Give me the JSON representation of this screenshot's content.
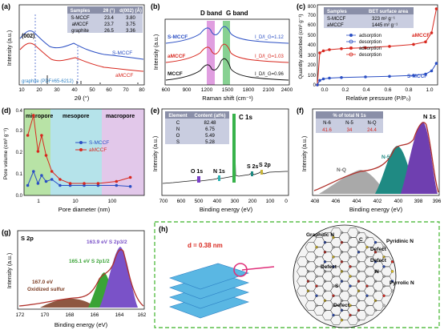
{
  "panel_labels": [
    "(a)",
    "(b)",
    "(c)",
    "(d)",
    "(e)",
    "(f)",
    "(g)",
    "(h)"
  ],
  "colors": {
    "smccf": "#2b4fc4",
    "amccf": "#d8281f",
    "graphite": "#1a1a1a",
    "d_band": "#c64fc7",
    "g_band": "#37b24a",
    "table_header": "#8a8fa8",
    "table_body": "#c9cde0",
    "micropore": "#b8e3a6",
    "mesopore": "#b5e3ea",
    "macropore": "#e2c8ea",
    "n6": "#6f3fb0",
    "n5": "#1f8a83",
    "nq": "#9a9a9a",
    "s2p32": "#7a52c8",
    "s2p12": "#3aa336",
    "oxidized_s": "#7a3a20",
    "envelope": "#b0302a",
    "frame_dash": "#5bbf4a",
    "sheet": "#5ab7e3",
    "magnify_ring": "#e0307a"
  },
  "panel_a": {
    "chart_data": {
      "type": "line",
      "xlabel": "2θ (°)",
      "ylabel": "Intensity (a.u.)",
      "xlim": [
        10,
        80
      ],
      "xticks": [
        "10",
        "20",
        "30",
        "40",
        "50",
        "60",
        "70",
        "80"
      ],
      "series": [
        {
          "name": "S-MCCF",
          "peaks": [
            23.4,
            43.5
          ]
        },
        {
          "name": "aMCCF",
          "peaks": [
            23.7,
            43.5
          ]
        },
        {
          "name": "graphite (PDF#65-6212)",
          "peaks": [
            26.5,
            42.4,
            44.6,
            54.7,
            77.5
          ]
        }
      ],
      "annotation": "(002)",
      "table": {
        "headers": [
          "Samples",
          "2θ (°)",
          "d(002) (Å)"
        ],
        "rows": [
          [
            "S-MCCF",
            "23.4",
            "3.80"
          ],
          [
            "aMCCF",
            "23.7",
            "3.75"
          ],
          [
            "graphite",
            "26.5",
            "3.36"
          ]
        ]
      }
    }
  },
  "panel_b": {
    "chart_data": {
      "type": "line",
      "xlabel": "Raman shift (cm⁻¹)",
      "ylabel": "Intensity (a.u.)",
      "xlim": [
        600,
        2400
      ],
      "xticks": [
        "600",
        "900",
        "1200",
        "1500",
        "1800",
        "2100",
        "2400"
      ],
      "band_labels": [
        "D band",
        "G band"
      ],
      "series": [
        {
          "name": "S-MCCF",
          "ratio": "I_D/I_G=1.12"
        },
        {
          "name": "aMCCF",
          "ratio": "I_D/I_G=1.03"
        },
        {
          "name": "MCCF",
          "ratio": "I_D/I_G=0.96"
        }
      ]
    }
  },
  "panel_c": {
    "chart_data": {
      "type": "line",
      "xlabel": "Relative pressure (P/P₀)",
      "ylabel": "Quantity adsorbed (cm³ g⁻¹)",
      "xlim": [
        0.0,
        1.0
      ],
      "ylim": [
        0,
        800
      ],
      "xticks": [
        "0.0",
        "0.2",
        "0.4",
        "0.6",
        "0.8",
        "1.0"
      ],
      "yticks": [
        "0",
        "100",
        "200",
        "300",
        "400",
        "500",
        "600",
        "700",
        "800"
      ],
      "legend": [
        "adsorption",
        "desorption",
        "adsorption",
        "desorption"
      ],
      "series_labels": [
        "aMCCF",
        "S-MCCF"
      ],
      "series": [
        {
          "name": "aMCCF",
          "x": [
            0.0,
            0.02,
            0.05,
            0.1,
            0.2,
            0.4,
            0.6,
            0.8,
            0.9,
            0.95,
            0.99
          ],
          "y": [
            0,
            320,
            340,
            352,
            362,
            372,
            385,
            405,
            430,
            520,
            760
          ]
        },
        {
          "name": "S-MCCF",
          "x": [
            0.0,
            0.02,
            0.05,
            0.1,
            0.2,
            0.4,
            0.6,
            0.8,
            0.9,
            0.95,
            0.99
          ],
          "y": [
            0,
            45,
            60,
            68,
            74,
            80,
            86,
            95,
            108,
            140,
            215
          ]
        }
      ],
      "table": {
        "headers": [
          "Samples",
          "BET surface area"
        ],
        "rows": [
          [
            "S-MCCF",
            "323 m² g⁻¹"
          ],
          [
            "aMCCF",
            "1445 m² g⁻¹"
          ]
        ]
      }
    }
  },
  "panel_d": {
    "chart_data": {
      "type": "line",
      "xlabel": "Pore diameter (nm)",
      "ylabel": "Pore volume (cm³ g⁻¹)",
      "xscale": "log",
      "xlim": [
        0.5,
        200
      ],
      "ylim": [
        0,
        0.4
      ],
      "xticks": [
        "1",
        "10",
        "100"
      ],
      "yticks": [
        "0.0",
        "0.1",
        "0.2",
        "0.3",
        "0.4"
      ],
      "regions": [
        "micropore",
        "mesopore",
        "macropore"
      ],
      "series": [
        {
          "name": "S-MCCF",
          "x": [
            0.6,
            0.8,
            1.0,
            1.2,
            1.5,
            2,
            3,
            5,
            10,
            20,
            50,
            100
          ],
          "y": [
            0.05,
            0.12,
            0.06,
            0.1,
            0.07,
            0.08,
            0.05,
            0.05,
            0.05,
            0.05,
            0.05,
            0.045
          ]
        },
        {
          "name": "aMCCF",
          "x": [
            0.6,
            0.8,
            1.0,
            1.2,
            1.5,
            2,
            3,
            5,
            10,
            20,
            50,
            100
          ],
          "y": [
            0.3,
            0.4,
            0.22,
            0.3,
            0.2,
            0.12,
            0.08,
            0.06,
            0.06,
            0.06,
            0.07,
            0.09
          ]
        }
      ]
    }
  },
  "panel_e": {
    "chart_data": {
      "type": "line",
      "xlabel": "Binding energy (eV)",
      "ylabel": "Intensity (a.u.)",
      "xlim": [
        700,
        0
      ],
      "xticks": [
        "700",
        "600",
        "500",
        "400",
        "300",
        "200",
        "100",
        "0"
      ],
      "peaks": [
        "O 1s",
        "N 1s",
        "C 1s",
        "S 2s",
        "S 2p"
      ],
      "table": {
        "headers": [
          "Element",
          "Content (at%)"
        ],
        "rows": [
          [
            "C",
            "82.48"
          ],
          [
            "N",
            "6.75"
          ],
          [
            "O",
            "5.49"
          ],
          [
            "S",
            "5.28"
          ]
        ]
      }
    }
  },
  "panel_f": {
    "chart_data": {
      "type": "area",
      "title": "N 1s",
      "xlabel": "Binding energy (eV)",
      "ylabel": "Intensity (a.u.)",
      "xlim": [
        408,
        396
      ],
      "xticks": [
        "408",
        "406",
        "404",
        "402",
        "400",
        "398",
        "396"
      ],
      "components": [
        "N-6",
        "N-5",
        "N-Q"
      ],
      "table": {
        "caption": "% of total N 1s",
        "headers": [
          "N-6",
          "N-5",
          "N-Q"
        ],
        "values": [
          "41.6",
          "34",
          "24.4"
        ]
      }
    }
  },
  "panel_g": {
    "chart_data": {
      "type": "area",
      "title": "S 2p",
      "xlabel": "Binding energy (eV)",
      "ylabel": "Intensity (a.u.)",
      "xlim": [
        172,
        162
      ],
      "xticks": [
        "172",
        "170",
        "168",
        "166",
        "164",
        "162"
      ],
      "annotations": [
        "163.9 eV  S 2p3/2",
        "165.1 eV  S 2p1/2",
        "167.0 eV",
        "Oxidized sulfur"
      ]
    }
  },
  "panel_h": {
    "spacing": "d = 0.38 nm",
    "labels": [
      "Graphitic N",
      "Pyridinic N",
      "Pyrrolic N",
      "Defect",
      "Defect",
      "Defect",
      "Defect",
      "C",
      "N",
      "S"
    ]
  }
}
